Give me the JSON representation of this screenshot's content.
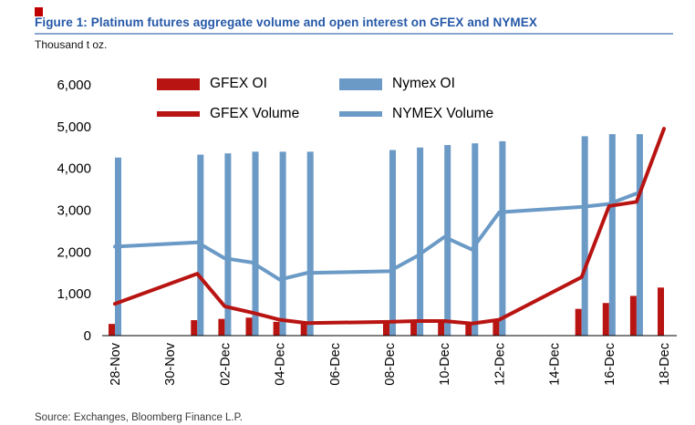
{
  "figure": {
    "title": "Figure 1: Platinum futures aggregate volume and open interest on GFEX and NYMEX",
    "unit": "Thousand t oz.",
    "source": "Source: Exchanges, Bloomberg Finance L.P.",
    "accent_color": "#c00000",
    "title_color": "#2458a8",
    "rule_color": "#8aa5cf"
  },
  "chart_data": {
    "type": "bar",
    "subtype": "mixed bar + line, dual series each",
    "title": "Platinum futures aggregate volume and open interest on GFEX and NYMEX",
    "ylabel": "Thousand t oz.",
    "ylim": [
      0,
      6000
    ],
    "y_ticks": [
      "0",
      "1,000",
      "2,000",
      "3,000",
      "4,000",
      "5,000",
      "6,000"
    ],
    "grid": false,
    "legend_position": "top",
    "categories": [
      "28-Nov",
      "01-Dec",
      "02-Dec",
      "03-Dec",
      "04-Dec",
      "05-Dec",
      "08-Dec",
      "09-Dec",
      "10-Dec",
      "11-Dec",
      "12-Dec",
      "15-Dec",
      "16-Dec",
      "17-Dec",
      "18-Dec"
    ],
    "day_index": [
      0,
      3,
      4,
      5,
      6,
      7,
      10,
      11,
      12,
      13,
      14,
      17,
      18,
      19,
      20
    ],
    "axis_day_span": 20,
    "x_tick_labels": [
      "28-Nov",
      "30-Nov",
      "02-Dec",
      "04-Dec",
      "06-Dec",
      "08-Dec",
      "10-Dec",
      "12-Dec",
      "14-Dec",
      "16-Dec",
      "18-Dec"
    ],
    "x_tick_day_index": [
      0,
      2,
      4,
      6,
      8,
      10,
      12,
      14,
      16,
      18,
      20
    ],
    "series": [
      {
        "name": "GFEX OI",
        "type": "bar",
        "color": "#b81412",
        "values": [
          280,
          370,
          400,
          430,
          330,
          300,
          370,
          380,
          390,
          300,
          380,
          640,
          780,
          950,
          1150
        ]
      },
      {
        "name": "Nymex OI",
        "type": "bar",
        "color": "#6b9ac6",
        "values": [
          4260,
          4330,
          4360,
          4400,
          4400,
          4400,
          4440,
          4500,
          4560,
          4600,
          4650,
          4770,
          4820,
          4820,
          null
        ]
      },
      {
        "name": "GFEX Volume",
        "type": "line",
        "color": "#b81412",
        "values": [
          760,
          1480,
          700,
          550,
          380,
          300,
          330,
          350,
          350,
          290,
          380,
          1400,
          3100,
          3200,
          4950
        ]
      },
      {
        "name": "NYMEX Volume",
        "type": "line",
        "color": "#6b9ac6",
        "values": [
          2130,
          2230,
          1850,
          1750,
          1340,
          1500,
          1540,
          1900,
          2360,
          2060,
          2950,
          3080,
          3150,
          3400,
          null
        ]
      }
    ]
  }
}
